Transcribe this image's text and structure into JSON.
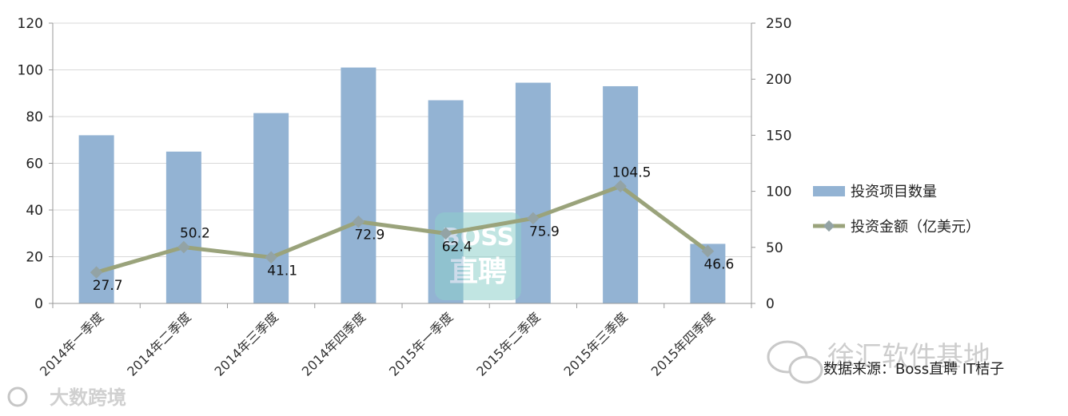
{
  "chart_data": {
    "type": "bar",
    "categories": [
      "2014年一季度",
      "2014年二季度",
      "2014年三季度",
      "2014年四季度",
      "2015年一季度",
      "2015年二季度",
      "2015年三季度",
      "2015年四季度"
    ],
    "series": [
      {
        "name": "投资项目数量",
        "type": "bar",
        "axis": "left",
        "color": "#93b3d3",
        "values": [
          72,
          65,
          81.5,
          101,
          87,
          94.5,
          93,
          25.5
        ]
      },
      {
        "name": "投资金额（亿美元）",
        "type": "line",
        "axis": "right",
        "color": "#9aa37b",
        "values": [
          27.7,
          50.2,
          41.1,
          72.9,
          62.4,
          75.9,
          104.5,
          46.6
        ],
        "labels": [
          "27.7",
          "50.2",
          "41.1",
          "72.9",
          "62.4",
          "75.9",
          "104.5",
          "46.6"
        ]
      }
    ],
    "left_axis": {
      "min": 0,
      "max": 120,
      "ticks": [
        "0",
        "20",
        "40",
        "60",
        "80",
        "100",
        "120"
      ]
    },
    "right_axis": {
      "min": 0,
      "max": 250,
      "ticks": [
        "0",
        "50",
        "100",
        "150",
        "200",
        "250"
      ]
    },
    "grid": true,
    "legend_position": "right"
  },
  "watermarks": {
    "center_line1": "BOSS",
    "center_line2": "直聘",
    "source_text": "数据来源：Boss直聘 IT桔子",
    "account_text": "徐汇软件基地",
    "bottom_left_text": "大数跨境"
  }
}
